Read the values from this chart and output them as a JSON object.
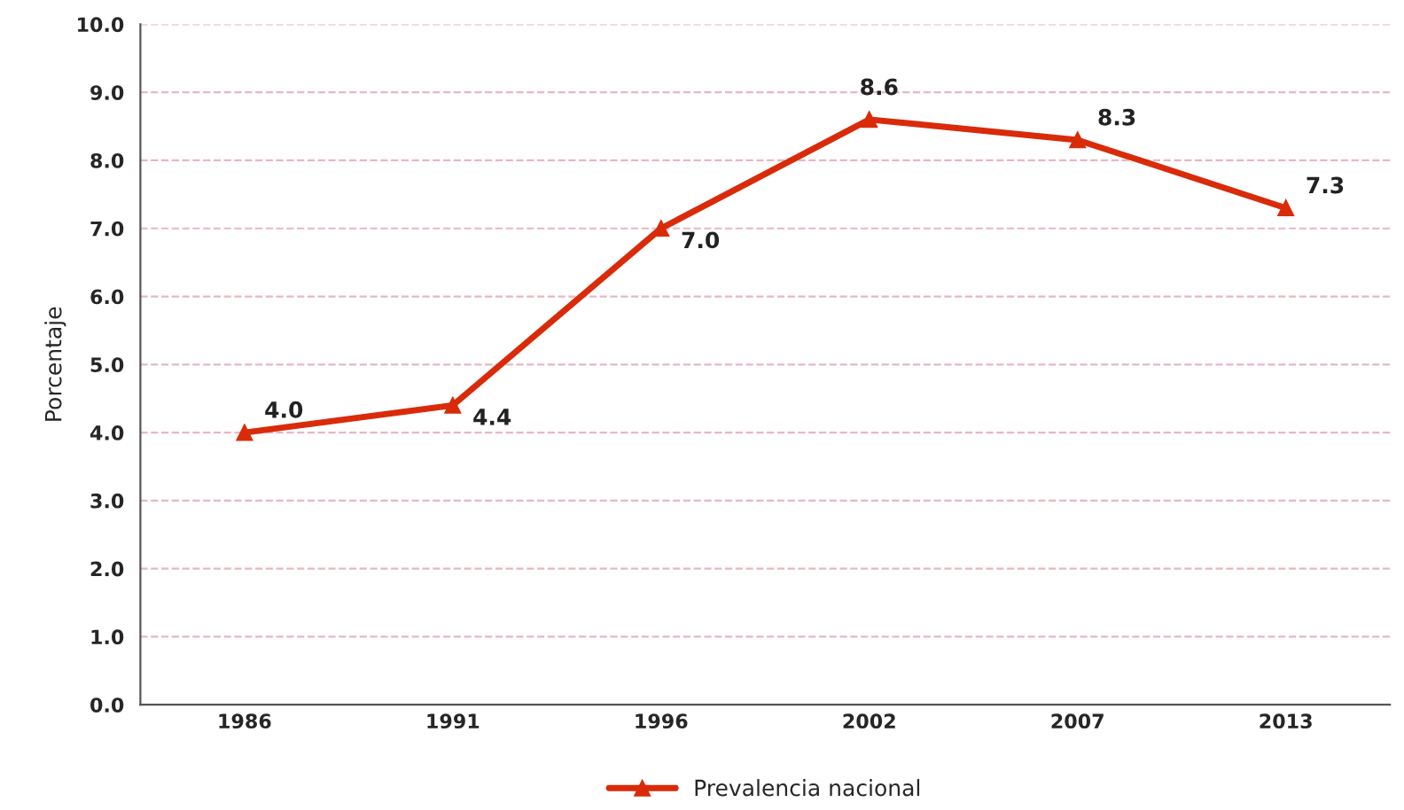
{
  "chart_data": {
    "type": "line",
    "ylabel": "Porcentaje",
    "categories": [
      "1986",
      "1991",
      "1996",
      "2002",
      "2007",
      "2013"
    ],
    "series": [
      {
        "name": "Prevalencia nacional",
        "color": "#d92b0a",
        "values": [
          4.0,
          4.4,
          7.0,
          8.6,
          8.3,
          7.3
        ],
        "value_labels": [
          "4.0",
          "4.4",
          "7.0",
          "8.6",
          "8.3",
          "7.3"
        ]
      }
    ],
    "ylim": [
      0,
      10
    ],
    "yticks": [
      {
        "value": 0,
        "label": "0.0"
      },
      {
        "value": 1,
        "label": "1.0"
      },
      {
        "value": 2,
        "label": "2.0"
      },
      {
        "value": 3,
        "label": "3.0"
      },
      {
        "value": 4,
        "label": "4.0"
      },
      {
        "value": 5,
        "label": "5.0"
      },
      {
        "value": 6,
        "label": "6.0"
      },
      {
        "value": 7,
        "label": "7.0"
      },
      {
        "value": 8,
        "label": "8.0"
      },
      {
        "value": 9,
        "label": "9.0"
      },
      {
        "value": 10,
        "label": "10.0"
      }
    ],
    "grid": "y",
    "legend": "bottom",
    "marker": "triangle",
    "line_style": "solid"
  }
}
